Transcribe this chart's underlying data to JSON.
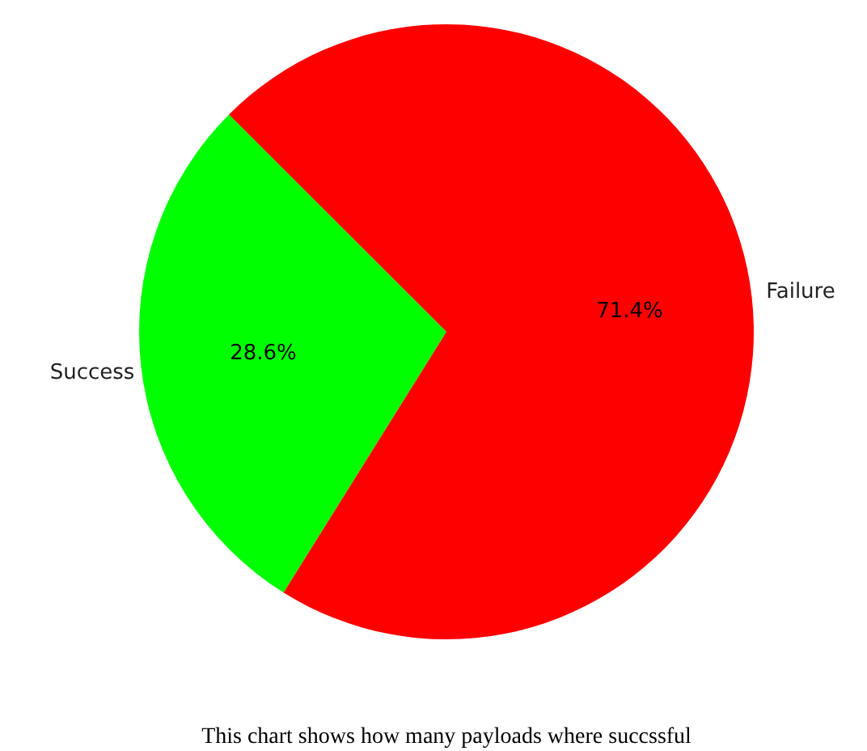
{
  "chart_data": {
    "type": "pie",
    "categories": [
      "Success",
      "Failure"
    ],
    "values": [
      28.6,
      71.4
    ],
    "colors": [
      "#00ff00",
      "#ff0000"
    ],
    "value_labels": [
      "28.6%",
      "71.4%"
    ],
    "annotations": [
      "This chart shows how many payloads where succssful"
    ]
  }
}
